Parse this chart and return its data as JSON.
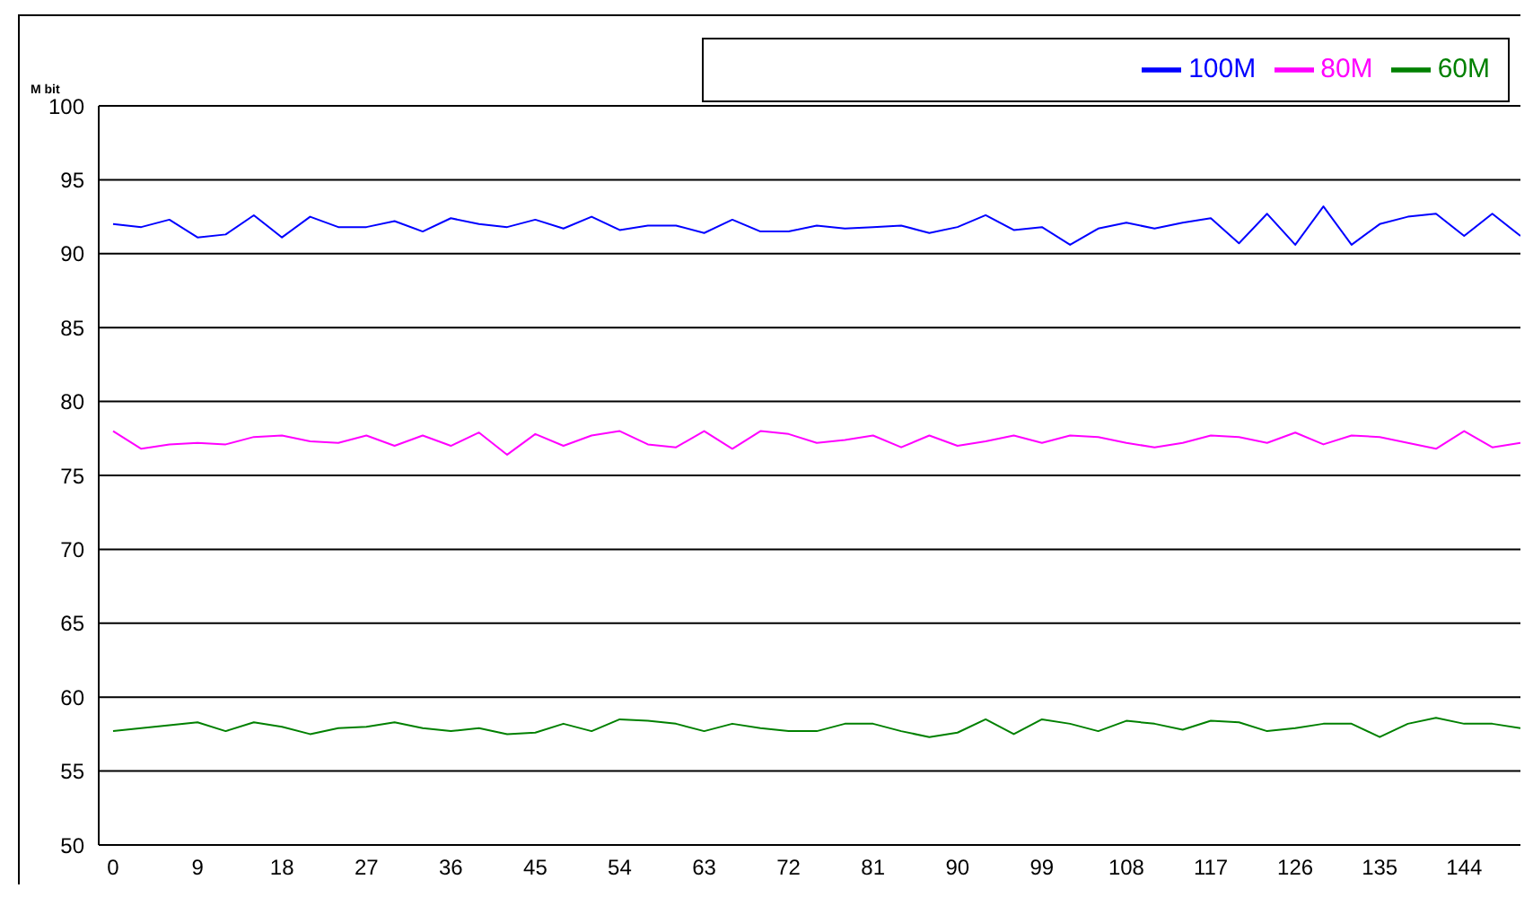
{
  "chart_data": {
    "type": "line",
    "ylabel": "M bit",
    "categories": [
      "0",
      null,
      null,
      "9",
      null,
      null,
      "18",
      null,
      null,
      "27",
      null,
      null,
      "36",
      null,
      null,
      "45",
      null,
      null,
      "54",
      null,
      null,
      "63",
      null,
      null,
      "72",
      null,
      null,
      "81",
      null,
      null,
      "90",
      null,
      null,
      "99",
      null,
      null,
      "108",
      null,
      null,
      "117",
      null,
      null,
      "126",
      null,
      null,
      "135",
      null,
      null,
      "144",
      null,
      null
    ],
    "series": [
      {
        "name": "100M",
        "color": "#0000ff",
        "values": [
          92.0,
          91.8,
          92.3,
          91.1,
          91.3,
          92.6,
          91.1,
          92.5,
          91.8,
          91.8,
          92.2,
          91.5,
          92.4,
          92.0,
          91.8,
          92.3,
          91.7,
          92.5,
          91.6,
          91.9,
          91.9,
          91.4,
          92.3,
          91.5,
          91.5,
          91.9,
          91.7,
          91.8,
          91.9,
          91.4,
          91.8,
          92.6,
          91.6,
          91.8,
          90.6,
          91.7,
          92.1,
          91.7,
          92.1,
          92.4,
          90.7,
          92.7,
          90.6,
          93.2,
          90.6,
          92.0,
          92.5,
          92.7,
          91.2,
          92.7,
          91.2
        ]
      },
      {
        "name": "80M",
        "color": "#ff00ff",
        "values": [
          78.0,
          76.8,
          77.1,
          77.2,
          77.1,
          77.6,
          77.7,
          77.3,
          77.2,
          77.7,
          77.0,
          77.7,
          77.0,
          77.9,
          76.4,
          77.8,
          77.0,
          77.7,
          78.0,
          77.1,
          76.9,
          78.0,
          76.8,
          78.0,
          77.8,
          77.2,
          77.4,
          77.7,
          76.9,
          77.7,
          77.0,
          77.3,
          77.7,
          77.2,
          77.7,
          77.6,
          77.2,
          76.9,
          77.2,
          77.7,
          77.6,
          77.2,
          77.9,
          77.1,
          77.7,
          77.6,
          77.2,
          76.8,
          78.0,
          76.9,
          77.2
        ]
      },
      {
        "name": "60M",
        "color": "#008000",
        "values": [
          57.7,
          57.9,
          58.1,
          58.3,
          57.7,
          58.3,
          58.0,
          57.5,
          57.9,
          58.0,
          58.3,
          57.9,
          57.7,
          57.9,
          57.5,
          57.6,
          58.2,
          57.7,
          58.5,
          58.4,
          58.2,
          57.7,
          58.2,
          57.9,
          57.7,
          57.7,
          58.2,
          58.2,
          57.7,
          57.3,
          57.6,
          58.5,
          57.5,
          58.5,
          58.2,
          57.7,
          58.4,
          58.2,
          57.8,
          58.4,
          58.3,
          57.7,
          57.9,
          58.2,
          58.2,
          57.3,
          58.2,
          58.6,
          58.2,
          58.2,
          57.9
        ]
      }
    ],
    "ylim": [
      50,
      100
    ],
    "yticks": [
      50,
      55,
      60,
      65,
      70,
      75,
      80,
      85,
      90,
      95,
      100
    ],
    "grid": "y",
    "legend": "top right",
    "marker": "none",
    "line_style": "solid"
  }
}
